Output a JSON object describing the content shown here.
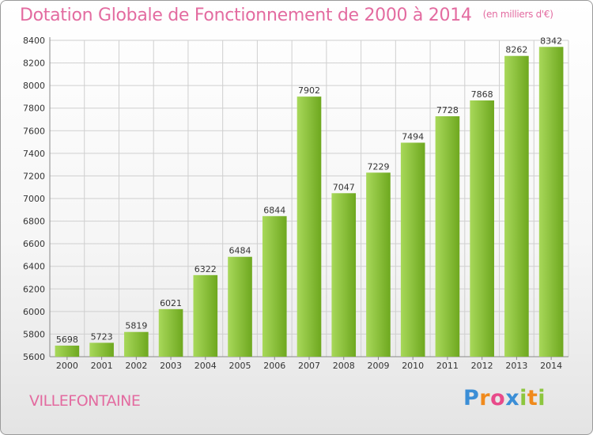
{
  "title": "Dotation Globale de Fonctionnement de 2000 à 2014",
  "unit_note": "(en milliers d'€)",
  "commune": "VILLEFONTAINE",
  "logo": {
    "text": "Proxiti",
    "letters": [
      {
        "char": "P",
        "color": "#3b8ed6"
      },
      {
        "char": "r",
        "color": "#f08a1c"
      },
      {
        "char": "o",
        "color": "#e84a8a"
      },
      {
        "char": "x",
        "color": "#3b8ed6"
      },
      {
        "char": "i",
        "color": "#8cc63e"
      },
      {
        "char": "t",
        "color": "#f08a1c"
      },
      {
        "char": "i",
        "color": "#8cc63e"
      }
    ]
  },
  "colors": {
    "accent": "#e36ba0",
    "bar_light": "#a8d85a",
    "bar_dark": "#6ea81f",
    "grid": "#cfcfcf",
    "axis_text": "#333333"
  },
  "chart_data": {
    "type": "bar",
    "categories": [
      "2000",
      "2001",
      "2002",
      "2003",
      "2004",
      "2005",
      "2006",
      "2007",
      "2008",
      "2009",
      "2010",
      "2011",
      "2012",
      "2013",
      "2014"
    ],
    "values": [
      5698,
      5723,
      5819,
      6021,
      6322,
      6484,
      6844,
      7902,
      7047,
      7229,
      7494,
      7728,
      7868,
      8262,
      8342
    ],
    "ylim": [
      5600,
      8400
    ],
    "yticks": [
      5600,
      5800,
      6000,
      6200,
      6400,
      6600,
      6800,
      7000,
      7200,
      7400,
      7600,
      7800,
      8000,
      8200,
      8400
    ],
    "grid": true,
    "data_labels": true
  }
}
